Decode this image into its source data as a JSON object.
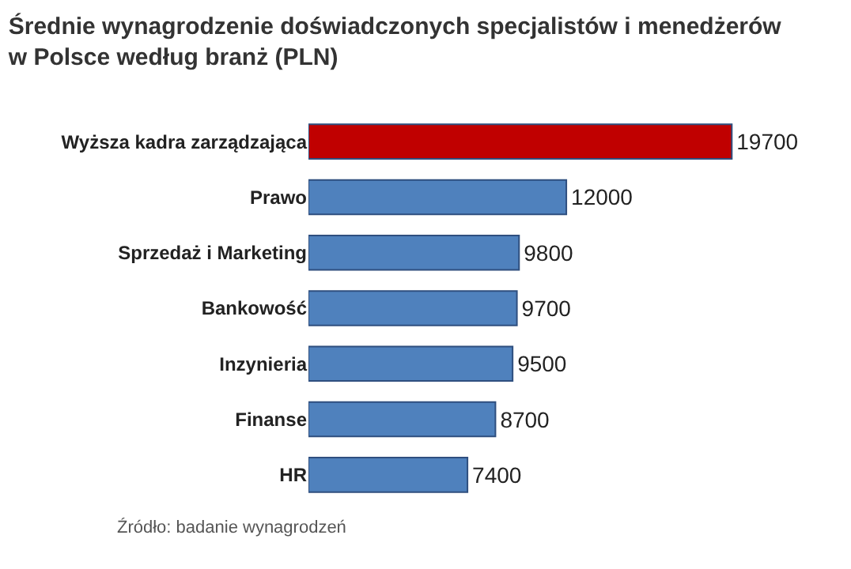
{
  "chart_data": {
    "type": "bar",
    "orientation": "horizontal",
    "title": "Średnie wynagrodzenie doświadczonych specjalistów i menedżerów\nw Polsce według branż (PLN)",
    "categories": [
      "Wyższa kadra zarządzająca",
      "Prawo",
      "Sprzedaż i Marketing",
      "Bankowość",
      "Inzynieria",
      "Finanse",
      "HR"
    ],
    "values": [
      19700,
      12000,
      9800,
      9700,
      9500,
      8700,
      7400
    ],
    "colors": [
      "#c00000",
      "#4f81bd",
      "#4f81bd",
      "#4f81bd",
      "#4f81bd",
      "#4f81bd",
      "#4f81bd"
    ],
    "data_labels": true,
    "annotations": [
      "Źródło: badanie wynagrodzeń"
    ]
  }
}
